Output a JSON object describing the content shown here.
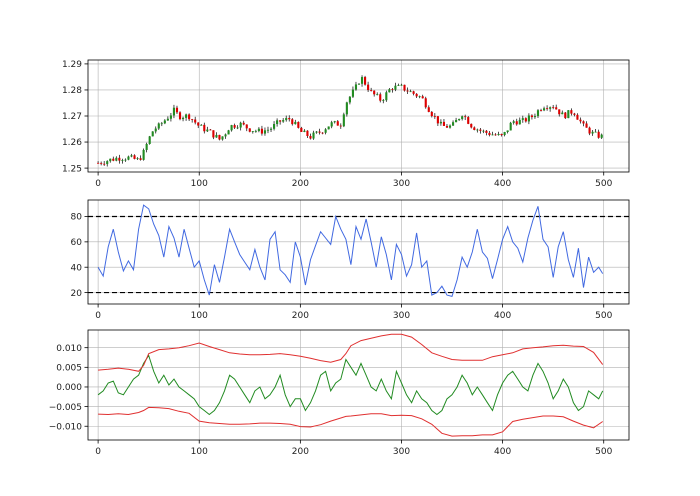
{
  "chart_data": [
    {
      "type": "candlestick",
      "title": "",
      "x_ticks": [
        0,
        100,
        200,
        300,
        400,
        500
      ],
      "y_ticks": [
        1.25,
        1.26,
        1.27,
        1.28,
        1.29
      ],
      "y_tick_labels": [
        "1.25",
        "1.26",
        "1.27",
        "1.28",
        "1.29"
      ],
      "xlim": [
        -10,
        525
      ],
      "ylim": [
        1.2485,
        1.2915
      ],
      "grid": true,
      "colors": {
        "up": "#228B22",
        "down": "#dd0000",
        "wick": "#000000"
      },
      "close_series": {
        "x": [
          0,
          10,
          20,
          30,
          40,
          45,
          50,
          55,
          60,
          65,
          70,
          75,
          80,
          90,
          100,
          110,
          120,
          125,
          130,
          140,
          150,
          160,
          170,
          180,
          190,
          200,
          210,
          220,
          230,
          240,
          245,
          250,
          255,
          260,
          265,
          270,
          280,
          290,
          300,
          310,
          320,
          330,
          340,
          350,
          360,
          370,
          380,
          390,
          400,
          410,
          420,
          430,
          440,
          450,
          460,
          470,
          480,
          490,
          499
        ],
        "values": [
          1.252,
          1.253,
          1.254,
          1.254,
          1.253,
          1.256,
          1.261,
          1.265,
          1.266,
          1.268,
          1.27,
          1.272,
          1.27,
          1.27,
          1.266,
          1.264,
          1.261,
          1.263,
          1.266,
          1.267,
          1.265,
          1.264,
          1.265,
          1.268,
          1.269,
          1.264,
          1.262,
          1.264,
          1.267,
          1.267,
          1.275,
          1.278,
          1.281,
          1.285,
          1.282,
          1.279,
          1.276,
          1.281,
          1.281,
          1.279,
          1.277,
          1.271,
          1.266,
          1.266,
          1.271,
          1.266,
          1.264,
          1.263,
          1.262,
          1.268,
          1.268,
          1.27,
          1.274,
          1.274,
          1.27,
          1.272,
          1.266,
          1.263,
          1.262
        ]
      }
    },
    {
      "type": "line",
      "x_ticks": [
        0,
        100,
        200,
        300,
        400,
        500
      ],
      "y_ticks": [
        20,
        40,
        60,
        80
      ],
      "y_tick_labels": [
        "20",
        "40",
        "60",
        "80"
      ],
      "xlim": [
        -10,
        525
      ],
      "ylim": [
        11,
        93
      ],
      "grid": true,
      "hlines": [
        {
          "y": 80,
          "style": "dashed",
          "color": "#000000"
        },
        {
          "y": 20,
          "style": "dashed",
          "color": "#000000"
        }
      ],
      "series": [
        {
          "color": "#4169E1",
          "x": [
            0,
            5,
            10,
            15,
            20,
            25,
            30,
            35,
            40,
            45,
            50,
            55,
            60,
            65,
            70,
            75,
            80,
            85,
            90,
            95,
            100,
            105,
            110,
            115,
            120,
            125,
            130,
            135,
            140,
            145,
            150,
            155,
            160,
            165,
            170,
            175,
            180,
            185,
            190,
            195,
            200,
            205,
            210,
            215,
            220,
            225,
            230,
            235,
            240,
            245,
            250,
            255,
            260,
            265,
            270,
            275,
            280,
            285,
            290,
            295,
            300,
            305,
            310,
            315,
            320,
            325,
            330,
            335,
            340,
            345,
            350,
            355,
            360,
            365,
            370,
            375,
            380,
            385,
            390,
            395,
            400,
            405,
            410,
            415,
            420,
            425,
            430,
            435,
            440,
            445,
            450,
            455,
            460,
            465,
            470,
            475,
            480,
            485,
            490,
            495,
            499
          ],
          "values": [
            40,
            33,
            56,
            70,
            52,
            37,
            45,
            38,
            70,
            89,
            86,
            74,
            65,
            48,
            72,
            63,
            48,
            70,
            55,
            40,
            45,
            30,
            18,
            42,
            28,
            48,
            70,
            60,
            50,
            44,
            38,
            54,
            40,
            30,
            62,
            68,
            38,
            34,
            28,
            60,
            48,
            26,
            46,
            57,
            68,
            63,
            58,
            80,
            70,
            62,
            42,
            72,
            62,
            78,
            60,
            40,
            64,
            50,
            30,
            58,
            50,
            33,
            42,
            67,
            40,
            45,
            18,
            20,
            25,
            18,
            17,
            30,
            48,
            40,
            52,
            70,
            52,
            47,
            31,
            46,
            62,
            72,
            60,
            55,
            44,
            63,
            77,
            88,
            62,
            56,
            32,
            56,
            68,
            46,
            32,
            55,
            24,
            48,
            36,
            40,
            35
          ]
        }
      ]
    },
    {
      "type": "line",
      "x_ticks": [
        0,
        100,
        200,
        300,
        400,
        500
      ],
      "y_ticks": [
        -0.01,
        -0.005,
        0.0,
        0.005,
        0.01
      ],
      "y_tick_labels": [
        "−0.010",
        "−0.005",
        "0.000",
        "0.005",
        "0.010"
      ],
      "xlim": [
        -10,
        525
      ],
      "ylim": [
        -0.0135,
        0.0145
      ],
      "grid": true,
      "series": [
        {
          "color": "#228B22",
          "x": [
            0,
            5,
            10,
            15,
            20,
            25,
            30,
            35,
            40,
            45,
            50,
            55,
            60,
            65,
            70,
            75,
            80,
            85,
            90,
            95,
            100,
            105,
            110,
            115,
            120,
            125,
            130,
            135,
            140,
            145,
            150,
            155,
            160,
            165,
            170,
            175,
            180,
            185,
            190,
            195,
            200,
            205,
            210,
            215,
            220,
            225,
            230,
            235,
            240,
            245,
            250,
            255,
            260,
            265,
            270,
            275,
            280,
            285,
            290,
            295,
            300,
            305,
            310,
            315,
            320,
            325,
            330,
            335,
            340,
            345,
            350,
            355,
            360,
            365,
            370,
            375,
            380,
            385,
            390,
            395,
            400,
            405,
            410,
            415,
            420,
            425,
            430,
            435,
            440,
            445,
            450,
            455,
            460,
            465,
            470,
            475,
            480,
            485,
            490,
            495,
            499
          ],
          "values": [
            -0.002,
            -0.001,
            0.001,
            0.0015,
            -0.0015,
            -0.002,
            0.0,
            0.002,
            0.003,
            0.006,
            0.008,
            0.004,
            0.001,
            0.003,
            0.0005,
            0.002,
            0.0,
            -0.001,
            -0.002,
            -0.003,
            -0.005,
            -0.006,
            -0.007,
            -0.006,
            -0.004,
            -0.001,
            0.003,
            0.002,
            0.0,
            -0.002,
            -0.004,
            -0.001,
            0.0,
            -0.003,
            -0.002,
            0.0,
            0.003,
            -0.002,
            -0.005,
            -0.003,
            -0.003,
            -0.006,
            -0.004,
            -0.001,
            0.003,
            0.004,
            -0.001,
            0.001,
            0.002,
            0.007,
            0.005,
            0.003,
            0.006,
            0.003,
            0.0,
            -0.001,
            0.002,
            -0.001,
            -0.003,
            0.004,
            0.001,
            -0.002,
            -0.004,
            -0.001,
            -0.003,
            -0.004,
            -0.006,
            -0.007,
            -0.006,
            -0.003,
            -0.002,
            0.0,
            0.003,
            0.001,
            -0.002,
            0.0,
            -0.002,
            -0.004,
            -0.006,
            -0.002,
            0.001,
            0.003,
            0.004,
            0.002,
            0.0,
            -0.001,
            0.003,
            0.006,
            0.004,
            0.001,
            -0.003,
            -0.001,
            0.002,
            0.0,
            -0.004,
            -0.006,
            -0.005,
            -0.001,
            -0.002,
            -0.003,
            -0.001
          ]
        },
        {
          "color": "#e03030",
          "x": [
            0,
            10,
            20,
            30,
            40,
            45,
            50,
            60,
            70,
            80,
            90,
            100,
            110,
            120,
            130,
            140,
            150,
            160,
            170,
            180,
            190,
            200,
            210,
            220,
            230,
            240,
            245,
            250,
            260,
            270,
            280,
            290,
            300,
            310,
            320,
            330,
            340,
            350,
            360,
            370,
            380,
            390,
            400,
            410,
            420,
            430,
            440,
            450,
            460,
            470,
            480,
            490,
            499
          ],
          "values": [
            0.0043,
            0.0045,
            0.0048,
            0.0045,
            0.004,
            0.0055,
            0.0085,
            0.0095,
            0.0097,
            0.01,
            0.0105,
            0.0112,
            0.0103,
            0.0095,
            0.0087,
            0.0084,
            0.0082,
            0.0082,
            0.0083,
            0.0085,
            0.0082,
            0.0078,
            0.0073,
            0.0067,
            0.0063,
            0.007,
            0.0085,
            0.0105,
            0.0118,
            0.0124,
            0.013,
            0.0134,
            0.0134,
            0.0127,
            0.0108,
            0.0087,
            0.0078,
            0.007,
            0.0068,
            0.0068,
            0.0068,
            0.0077,
            0.0082,
            0.0087,
            0.0097,
            0.01,
            0.0102,
            0.0105,
            0.0106,
            0.0104,
            0.0103,
            0.0088,
            0.0057
          ]
        },
        {
          "color": "#e03030",
          "x": [
            0,
            10,
            20,
            30,
            40,
            45,
            50,
            60,
            70,
            80,
            90,
            100,
            110,
            120,
            130,
            140,
            150,
            160,
            170,
            180,
            190,
            200,
            210,
            220,
            230,
            240,
            245,
            250,
            260,
            270,
            280,
            290,
            300,
            310,
            320,
            330,
            340,
            350,
            360,
            370,
            380,
            390,
            400,
            410,
            420,
            430,
            440,
            450,
            460,
            470,
            480,
            490,
            499
          ],
          "values": [
            -0.0069,
            -0.007,
            -0.0068,
            -0.007,
            -0.0065,
            -0.006,
            -0.0052,
            -0.0053,
            -0.0055,
            -0.0062,
            -0.0067,
            -0.0087,
            -0.0091,
            -0.0093,
            -0.0095,
            -0.0095,
            -0.0094,
            -0.0092,
            -0.0092,
            -0.0093,
            -0.0095,
            -0.0101,
            -0.0102,
            -0.0096,
            -0.0087,
            -0.0079,
            -0.0075,
            -0.0074,
            -0.0071,
            -0.0068,
            -0.0068,
            -0.0073,
            -0.0072,
            -0.0073,
            -0.0081,
            -0.0095,
            -0.0118,
            -0.0125,
            -0.0124,
            -0.0124,
            -0.0122,
            -0.0122,
            -0.0114,
            -0.0088,
            -0.0082,
            -0.0078,
            -0.0074,
            -0.0074,
            -0.0076,
            -0.0087,
            -0.0097,
            -0.0104,
            -0.0088
          ]
        }
      ]
    }
  ]
}
